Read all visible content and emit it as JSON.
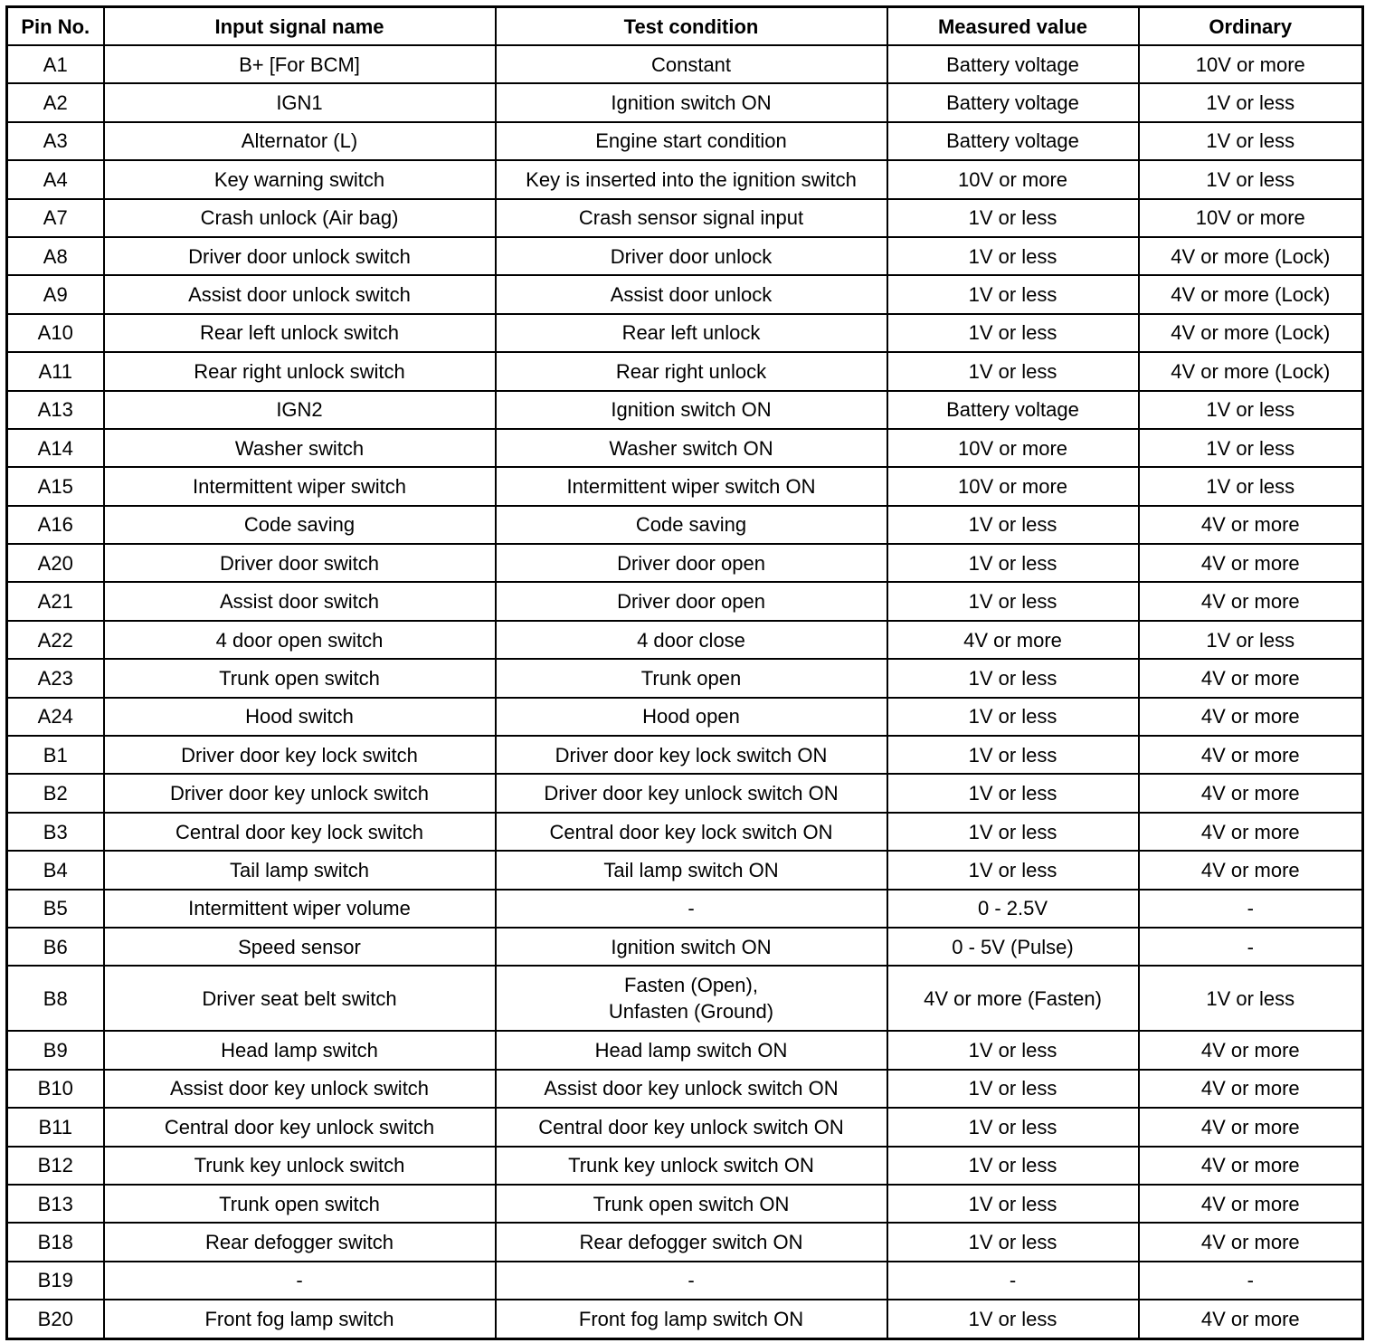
{
  "table": {
    "header": [
      "Pin No.",
      "Input signal name",
      "Test condition",
      "Measured value",
      "Ordinary"
    ],
    "rows": [
      [
        "A1",
        "B+ [For BCM]",
        "Constant",
        "Battery voltage",
        "10V or more"
      ],
      [
        "A2",
        "IGN1",
        "Ignition switch ON",
        "Battery voltage",
        "1V or less"
      ],
      [
        "A3",
        "Alternator (L)",
        "Engine start condition",
        "Battery voltage",
        "1V or less"
      ],
      [
        "A4",
        "Key warning switch",
        "Key is inserted into the ignition switch",
        "10V or more",
        "1V or less"
      ],
      [
        "A7",
        "Crash unlock (Air bag)",
        "Crash sensor signal input",
        "1V or less",
        "10V or more"
      ],
      [
        "A8",
        "Driver door unlock switch",
        "Driver door unlock",
        "1V or less",
        "4V or more (Lock)"
      ],
      [
        "A9",
        "Assist door unlock switch",
        "Assist door unlock",
        "1V or less",
        "4V or more (Lock)"
      ],
      [
        "A10",
        "Rear left unlock switch",
        "Rear left unlock",
        "1V or less",
        "4V or more (Lock)"
      ],
      [
        "A11",
        "Rear right unlock switch",
        "Rear right unlock",
        "1V or less",
        "4V or more (Lock)"
      ],
      [
        "A13",
        "IGN2",
        "Ignition switch ON",
        "Battery voltage",
        "1V or less"
      ],
      [
        "A14",
        "Washer switch",
        "Washer switch ON",
        "10V or more",
        "1V or less"
      ],
      [
        "A15",
        "Intermittent wiper switch",
        "Intermittent wiper switch ON",
        "10V or more",
        "1V or less"
      ],
      [
        "A16",
        "Code saving",
        "Code saving",
        "1V or less",
        "4V or more"
      ],
      [
        "A20",
        "Driver door switch",
        "Driver door open",
        "1V or less",
        "4V or more"
      ],
      [
        "A21",
        "Assist door switch",
        "Driver door open",
        "1V or less",
        "4V or more"
      ],
      [
        "A22",
        "4 door open switch",
        "4 door close",
        "4V or more",
        "1V or less"
      ],
      [
        "A23",
        "Trunk open switch",
        "Trunk open",
        "1V or less",
        "4V or more"
      ],
      [
        "A24",
        "Hood switch",
        "Hood open",
        "1V or less",
        "4V or more"
      ],
      [
        "B1",
        "Driver door key lock switch",
        "Driver door key lock switch ON",
        "1V or less",
        "4V or more"
      ],
      [
        "B2",
        "Driver door key unlock switch",
        "Driver door key unlock switch ON",
        "1V or less",
        "4V or more"
      ],
      [
        "B3",
        "Central door key lock switch",
        "Central door key lock switch ON",
        "1V or less",
        "4V or more"
      ],
      [
        "B4",
        "Tail lamp switch",
        "Tail lamp switch ON",
        "1V or less",
        "4V or more"
      ],
      [
        "B5",
        "Intermittent wiper volume",
        "-",
        "0 - 2.5V",
        "-"
      ],
      [
        "B6",
        "Speed sensor",
        "Ignition switch ON",
        "0 - 5V (Pulse)",
        "-"
      ],
      [
        "B8",
        "Driver seat belt switch",
        "Fasten (Open),\nUnfasten (Ground)",
        "4V or more (Fasten)",
        "1V or less"
      ],
      [
        "B9",
        "Head lamp switch",
        "Head lamp switch ON",
        "1V or less",
        "4V or more"
      ],
      [
        "B10",
        "Assist door key unlock switch",
        "Assist door key unlock switch ON",
        "1V or less",
        "4V or more"
      ],
      [
        "B11",
        "Central door key unlock switch",
        "Central door key unlock switch ON",
        "1V or less",
        "4V or more"
      ],
      [
        "B12",
        "Trunk key unlock switch",
        "Trunk key unlock switch ON",
        "1V or less",
        "4V or more"
      ],
      [
        "B13",
        "Trunk open switch",
        "Trunk open switch ON",
        "1V or less",
        "4V or more"
      ],
      [
        "B18",
        "Rear defogger switch",
        "Rear defogger switch ON",
        "1V or less",
        "4V or more"
      ],
      [
        "B19",
        "-",
        "-",
        "-",
        "-"
      ],
      [
        "B20",
        "Front fog lamp switch",
        "Front fog lamp switch ON",
        "1V or less",
        "4V or more"
      ]
    ]
  }
}
